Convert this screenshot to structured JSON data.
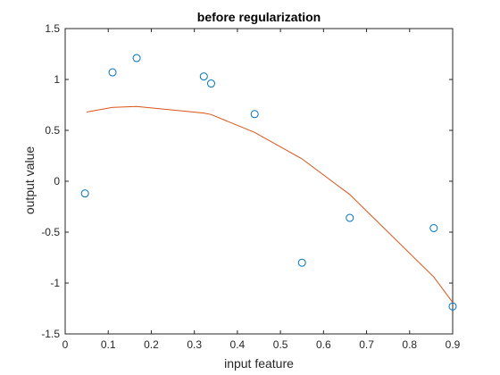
{
  "chart_data": {
    "type": "scatter",
    "title": "before regularization",
    "xlabel": "input feature",
    "ylabel": "output value",
    "xlim": [
      0,
      0.9
    ],
    "ylim": [
      -1.5,
      1.5
    ],
    "xticks": [
      0,
      0.1,
      0.2,
      0.3,
      0.4,
      0.5,
      0.6,
      0.7,
      0.8,
      0.9
    ],
    "xtick_labels": [
      "0",
      "0.1",
      "0.2",
      "0.3",
      "0.4",
      "0.5",
      "0.6",
      "0.7",
      "0.8",
      "0.9"
    ],
    "yticks": [
      -1.5,
      -1,
      -0.5,
      0,
      0.5,
      1,
      1.5
    ],
    "ytick_labels": [
      "-1.5",
      "-1",
      "-0.5",
      "0",
      "0.5",
      "1",
      "1.5"
    ],
    "grid": false,
    "series": [
      {
        "type": "scatter",
        "marker": "circle-open",
        "color": "#0072BD",
        "x": [
          0.046,
          0.11,
          0.166,
          0.322,
          0.339,
          0.44,
          0.55,
          0.661,
          0.856,
          0.9
        ],
        "y": [
          -0.12,
          1.07,
          1.21,
          1.03,
          0.96,
          0.66,
          -0.8,
          -0.36,
          -0.46,
          -1.23
        ]
      },
      {
        "type": "line",
        "color": "#D95319",
        "x": [
          0.05,
          0.11,
          0.166,
          0.322,
          0.339,
          0.44,
          0.55,
          0.661,
          0.856,
          0.9
        ],
        "y": [
          0.68,
          0.725,
          0.735,
          0.67,
          0.655,
          0.48,
          0.22,
          -0.13,
          -0.94,
          -1.19
        ]
      }
    ]
  }
}
